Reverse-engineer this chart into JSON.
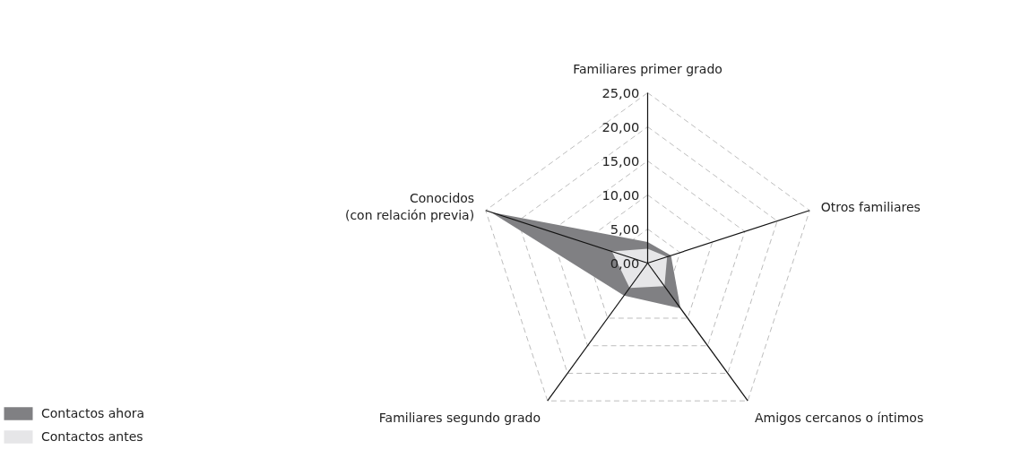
{
  "chart_data": {
    "type": "radar",
    "categories": [
      "Familiares primer grado",
      "Otros familiares",
      "Amigos cercanos o íntimos",
      "Familiares segundo grado",
      "Conocidos\n(con relación previa)"
    ],
    "series": [
      {
        "name": "Contactos ahora",
        "color": "#808083",
        "values": [
          3.1,
          3.6,
          8.2,
          5.9,
          24.2
        ]
      },
      {
        "name": "Contactos antes",
        "color": "#e6e6e8",
        "values": [
          2.1,
          3.0,
          4.2,
          4.5,
          5.5
        ]
      }
    ],
    "ylim": [
      0,
      25
    ],
    "yticks": [
      {
        "value": 0,
        "label": "0,00"
      },
      {
        "value": 5,
        "label": "5,00"
      },
      {
        "value": 10,
        "label": "10,00"
      },
      {
        "value": 15,
        "label": "15,00"
      },
      {
        "value": 20,
        "label": "20,00"
      },
      {
        "value": 25,
        "label": "25,00"
      }
    ],
    "grid": true,
    "legend": "bottom left"
  }
}
